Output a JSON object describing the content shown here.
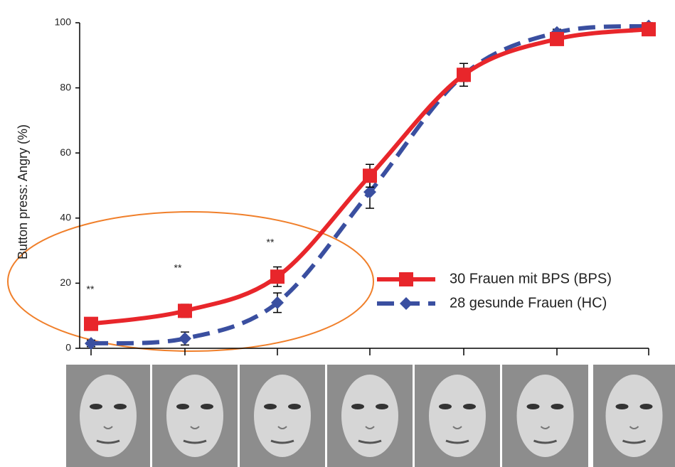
{
  "chart_data": {
    "type": "line",
    "ylabel": "Button press: Angry (%)",
    "categories": [
      null,
      null,
      null,
      null,
      null,
      null,
      null
    ],
    "series": [
      {
        "name": "30 Frauen mit BPS (BPS)",
        "color": "#e8262b",
        "marker": "square",
        "dashed": false,
        "values": [
          7.5,
          11.5,
          22,
          53,
          84,
          95,
          98
        ],
        "errors": [
          1,
          2,
          3,
          3.5,
          3.5,
          1,
          1
        ]
      },
      {
        "name": "28 gesunde Frauen (HC)",
        "color": "#3a4fa0",
        "marker": "diamond",
        "dashed": true,
        "values": [
          1.5,
          3,
          14,
          48,
          84,
          97,
          99
        ],
        "errors": [
          1,
          2,
          3,
          5,
          2,
          1,
          1
        ]
      }
    ],
    "annotations": [
      "**",
      "**",
      "**"
    ],
    "ylim": [
      0,
      100
    ],
    "yticks": [
      0,
      20,
      40,
      60,
      80,
      100
    ]
  }
}
